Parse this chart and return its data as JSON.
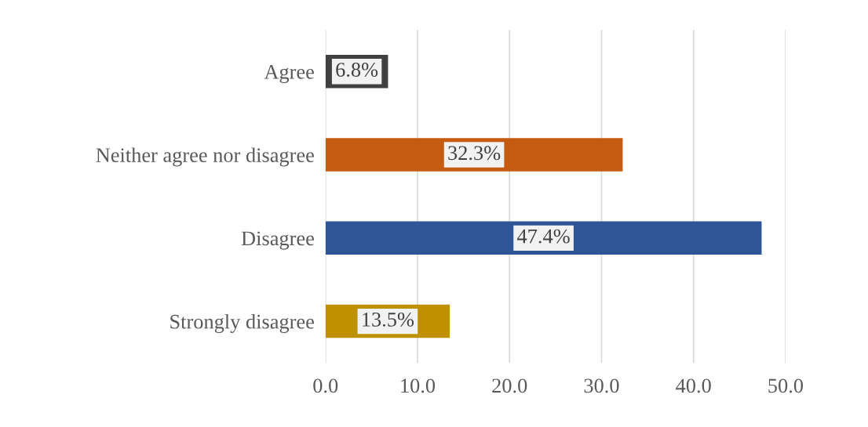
{
  "chart_data": {
    "type": "bar",
    "orientation": "horizontal",
    "categories": [
      "Agree",
      "Neither agree nor disagree",
      "Disagree",
      "Strongly disagree"
    ],
    "values": [
      6.8,
      32.3,
      47.4,
      13.5
    ],
    "colors": [
      "#404040",
      "#c55a11",
      "#2f5597",
      "#bf9000"
    ],
    "value_labels": [
      "6.8%",
      "32.3%",
      "47.4%",
      "13.5%"
    ],
    "xlim": [
      0,
      50
    ],
    "xticks": [
      {
        "value": 0,
        "label": "0.0"
      },
      {
        "value": 10,
        "label": "10.0"
      },
      {
        "value": 20,
        "label": "20.0"
      },
      {
        "value": 30,
        "label": "30.0"
      },
      {
        "value": 40,
        "label": "40.0"
      },
      {
        "value": 50,
        "label": "50.0"
      }
    ],
    "grid": "x"
  }
}
